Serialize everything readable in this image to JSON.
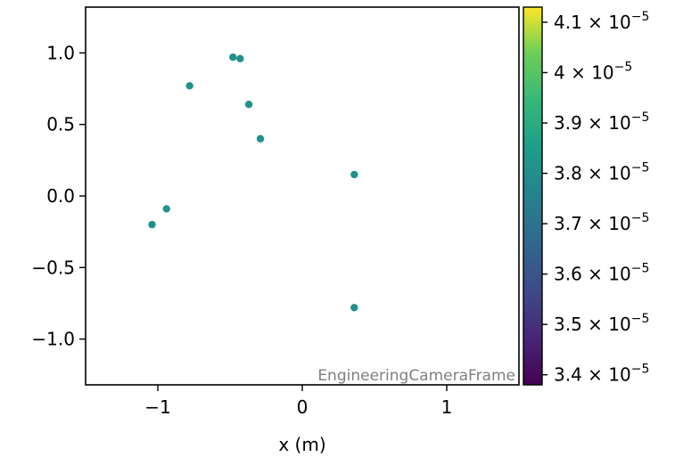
{
  "chart_data": {
    "type": "scatter",
    "xlabel": "x  (m)",
    "ylabel": "",
    "xlim": [
      -1.5,
      1.5
    ],
    "ylim": [
      -1.32,
      1.32
    ],
    "x_ticks": [
      -1,
      0,
      1
    ],
    "x_tick_labels": [
      "−1",
      "0",
      "1"
    ],
    "y_ticks": [
      1.0,
      0.5,
      0.0,
      -0.5,
      -1.0
    ],
    "y_tick_labels": [
      "1.0",
      "0.5",
      "0.0",
      "−0.5",
      "−1.0"
    ],
    "grid": false,
    "watermark": "EngineeringCameraFrame",
    "points": [
      {
        "x": -0.48,
        "y": 0.97
      },
      {
        "x": -0.43,
        "y": 0.96
      },
      {
        "x": -0.78,
        "y": 0.77
      },
      {
        "x": -0.37,
        "y": 0.64
      },
      {
        "x": -0.29,
        "y": 0.4
      },
      {
        "x": 0.36,
        "y": 0.15
      },
      {
        "x": -0.94,
        "y": -0.09
      },
      {
        "x": -1.04,
        "y": -0.2
      },
      {
        "x": 0.36,
        "y": -0.78
      }
    ],
    "point_color": "#21918c",
    "colorbar": {
      "colormap": "viridis",
      "range": [
        3.38e-05,
        4.13e-05
      ],
      "ticks": [
        {
          "value": 3.4e-05,
          "mantissa": "3.4",
          "base": "× 10",
          "exp": "−5"
        },
        {
          "value": 3.5e-05,
          "mantissa": "3.5",
          "base": "× 10",
          "exp": "−5"
        },
        {
          "value": 3.6e-05,
          "mantissa": "3.6",
          "base": "× 10",
          "exp": "−5"
        },
        {
          "value": 3.7e-05,
          "mantissa": "3.7",
          "base": "× 10",
          "exp": "−5"
        },
        {
          "value": 3.8e-05,
          "mantissa": "3.8",
          "base": "× 10",
          "exp": "−5"
        },
        {
          "value": 3.9e-05,
          "mantissa": "3.9",
          "base": "× 10",
          "exp": "−5"
        },
        {
          "value": 4e-05,
          "mantissa": "4",
          "base": "× 10",
          "exp": "−5"
        },
        {
          "value": 4.1e-05,
          "mantissa": "4.1",
          "base": "× 10",
          "exp": "−5"
        }
      ]
    }
  }
}
